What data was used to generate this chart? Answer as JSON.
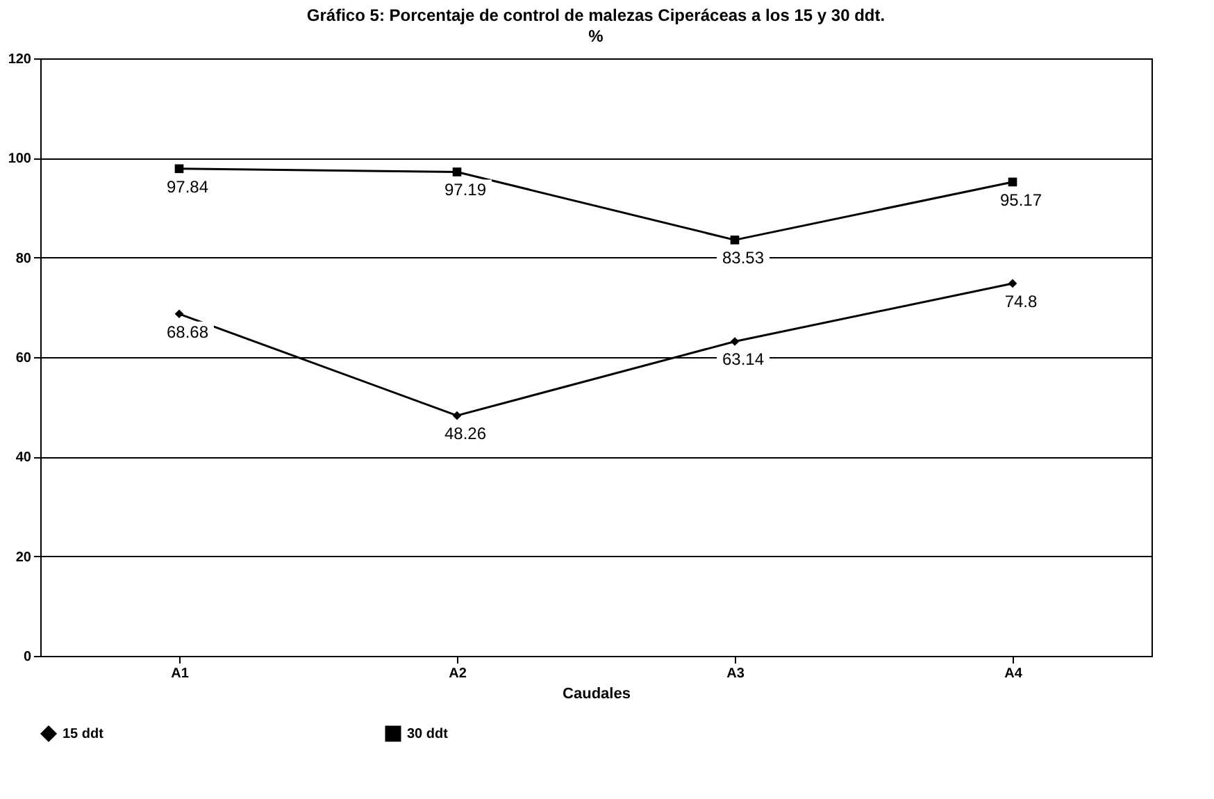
{
  "chart_data": {
    "type": "line",
    "title": "Gráfico 5: Porcentaje de control de malezas Ciperáceas a los 15 y 30 ddt.",
    "xlabel": "Caudales",
    "ylabel": "%",
    "categories": [
      "A1",
      "A2",
      "A3",
      "A4"
    ],
    "series": [
      {
        "name": "15 ddt",
        "color": "#000000",
        "marker": "diamond",
        "values": [
          68.68,
          48.26,
          63.14,
          74.8
        ]
      },
      {
        "name": "30 ddt",
        "color": "#000000",
        "marker": "square",
        "values": [
          97.84,
          97.19,
          83.53,
          95.17
        ]
      }
    ],
    "ylim": [
      0,
      120
    ],
    "yticks": [
      0,
      20,
      40,
      60,
      80,
      100,
      120
    ],
    "grid": "y",
    "legend": "bottom",
    "data_labels": true,
    "line_style": "solid"
  }
}
